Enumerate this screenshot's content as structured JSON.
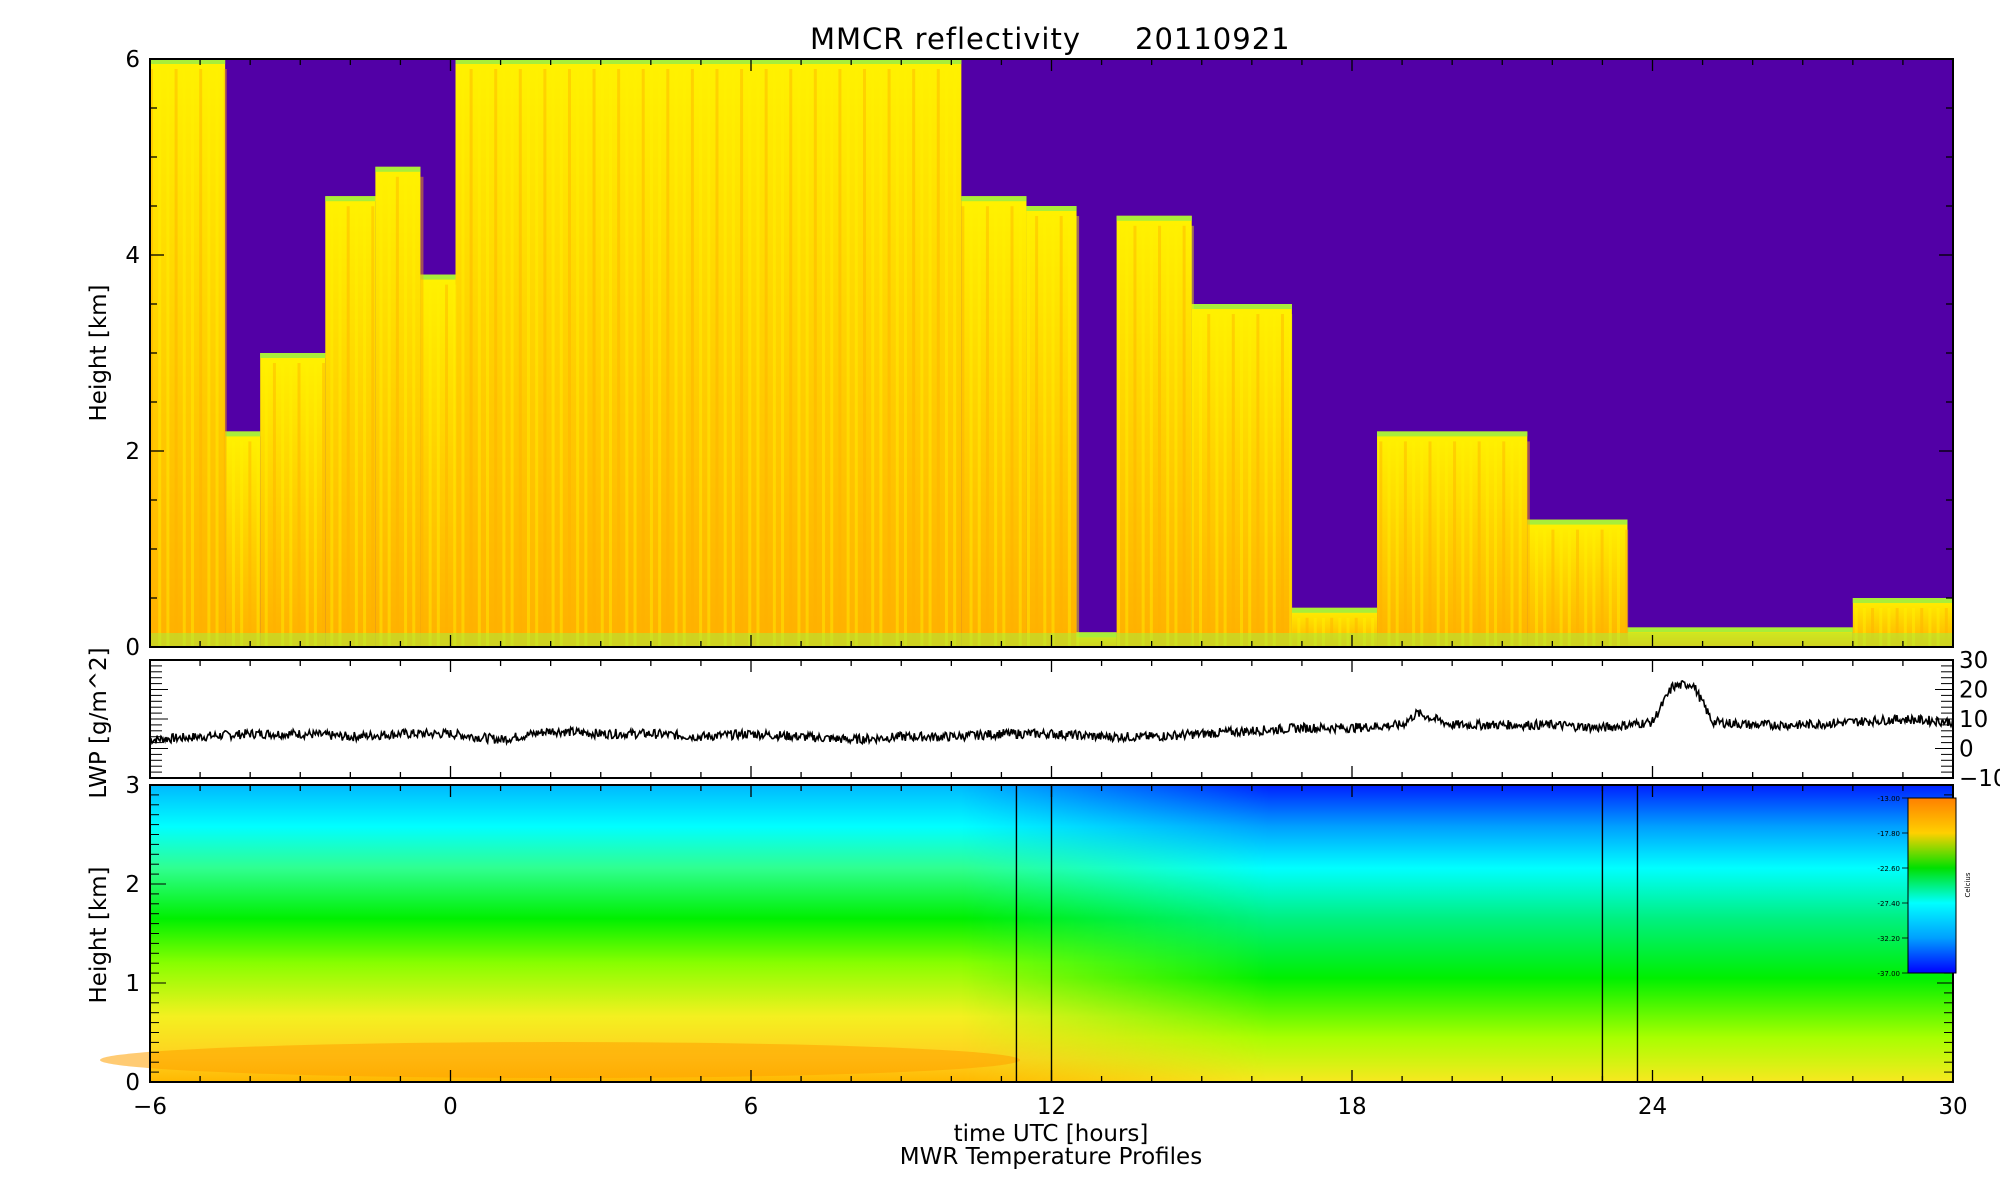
{
  "chart_data": [
    {
      "type": "heatmap",
      "title": "MMCR reflectivity",
      "date": "20110921",
      "xlabel": "",
      "ylabel": "Height [km]",
      "xlim": [
        -6,
        30
      ],
      "ylim": [
        0,
        6
      ],
      "y_ticks": [
        "0",
        "2",
        "4",
        "6"
      ],
      "colors": {
        "background": "#5200a6",
        "cloud_low": "#a8ee3a",
        "cloud": "#fff200",
        "cloud_core": "#ffb000"
      },
      "cloud_segments": [
        {
          "x0": -6.0,
          "x1": -4.5,
          "top": 6.0
        },
        {
          "x0": -4.5,
          "x1": -3.8,
          "top": 2.2
        },
        {
          "x0": -3.8,
          "x1": -2.5,
          "top": 3.0
        },
        {
          "x0": -2.5,
          "x1": -1.5,
          "top": 4.6
        },
        {
          "x0": -1.5,
          "x1": -0.6,
          "top": 4.9
        },
        {
          "x0": -0.6,
          "x1": 0.1,
          "top": 3.8
        },
        {
          "x0": 0.1,
          "x1": 10.2,
          "top": 6.0
        },
        {
          "x0": 10.2,
          "x1": 11.5,
          "top": 4.6
        },
        {
          "x0": 11.5,
          "x1": 12.5,
          "top": 4.5
        },
        {
          "x0": 12.5,
          "x1": 13.3,
          "top": 0.15
        },
        {
          "x0": 13.3,
          "x1": 14.8,
          "top": 4.4
        },
        {
          "x0": 14.8,
          "x1": 16.8,
          "top": 3.5
        },
        {
          "x0": 16.8,
          "x1": 18.5,
          "top": 0.4
        },
        {
          "x0": 18.5,
          "x1": 21.5,
          "top": 2.2
        },
        {
          "x0": 21.5,
          "x1": 23.5,
          "top": 1.3
        },
        {
          "x0": 23.5,
          "x1": 28.0,
          "top": 0.2
        },
        {
          "x0": 28.0,
          "x1": 30.0,
          "top": 0.5
        }
      ]
    },
    {
      "type": "line",
      "title": "",
      "xlabel": "",
      "ylabel": "LWP [g/m^2]",
      "xlim": [
        -6,
        30
      ],
      "ylim": [
        -10,
        30
      ],
      "y_ticks": [
        "30",
        "20",
        "10",
        "0",
        "−10"
      ],
      "series": [
        {
          "x": [
            -6,
            -5,
            -4,
            -3,
            -2,
            -1,
            0,
            1,
            2,
            3,
            4,
            5,
            6,
            7,
            8,
            9,
            10,
            11,
            12,
            13,
            14,
            15,
            16,
            17,
            18,
            19,
            19.3,
            20,
            21,
            22,
            23,
            24,
            24.4,
            24.8,
            25.2,
            26,
            27,
            28,
            29,
            30
          ],
          "y": [
            3,
            4,
            5,
            5,
            4,
            5,
            5,
            3,
            6,
            5,
            5,
            4,
            5,
            4,
            3,
            4,
            4,
            5,
            5,
            4,
            4,
            5,
            6,
            7,
            7,
            8,
            12,
            8,
            8,
            8,
            7,
            9,
            21,
            22,
            9,
            8,
            8,
            9,
            10,
            9
          ]
        }
      ]
    },
    {
      "type": "heatmap",
      "title": "",
      "xlabel": "time UTC [hours]",
      "subtitle": "MWR Temperature Profiles",
      "ylabel": "Height [km]",
      "xlim": [
        -6,
        30
      ],
      "ylim": [
        0,
        3
      ],
      "x_ticks": [
        "−6",
        "0",
        "6",
        "12",
        "18",
        "24",
        "30"
      ],
      "y_ticks": [
        "0",
        "1",
        "2",
        "3"
      ],
      "vertical_lines": [
        11.3,
        12.0,
        23.0,
        23.7
      ],
      "colorbar": {
        "label": "Celcius",
        "ticks": [
          "-13.00",
          "-17.80",
          "-22.60",
          "-27.40",
          "-32.20",
          "-37.00"
        ],
        "colors": [
          "#ff8000",
          "#ffd000",
          "#a8ff00",
          "#00e000",
          "#00d0ff",
          "#0000ff"
        ]
      }
    }
  ]
}
